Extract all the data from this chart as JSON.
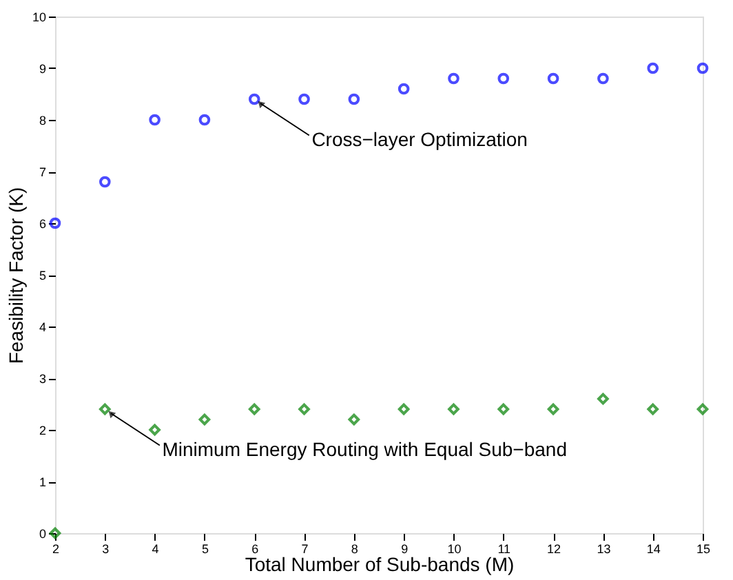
{
  "chart_data": {
    "type": "scatter",
    "xlabel": "Total Number of Sub-bands (M)",
    "ylabel": "Feasibility Factor (K)",
    "x": [
      2,
      3,
      4,
      5,
      6,
      7,
      8,
      9,
      10,
      11,
      12,
      13,
      14,
      15
    ],
    "series": [
      {
        "color": "#0000ff",
        "marker": "circle",
        "values": [
          6,
          6.8,
          8,
          8,
          8.4,
          8.4,
          8.4,
          8.6,
          8.8,
          8.8,
          8.8,
          8.8,
          9,
          9
        ]
      },
      {
        "color": "#008000",
        "marker": "diamond",
        "values": [
          0,
          2.4,
          2,
          2.2,
          2.4,
          2.4,
          2.2,
          2.4,
          2.4,
          2.4,
          2.4,
          2.6,
          2.4,
          2.4
        ]
      }
    ],
    "annotations": [
      {
        "text": "Cross−layer Optimization",
        "x": 6,
        "y": 8.4
      },
      {
        "text": "Minimum Energy Routing with Equal Sub−band",
        "x": 3,
        "y": 2.4
      }
    ],
    "xlim": [
      2,
      15
    ],
    "xticks": [
      2,
      3,
      4,
      5,
      6,
      7,
      8,
      9,
      10,
      11,
      12,
      13,
      14,
      15
    ],
    "ylim": [
      0,
      10
    ],
    "yticks": [
      0,
      1,
      2,
      3,
      4,
      5,
      6,
      7,
      8,
      9,
      10
    ]
  }
}
